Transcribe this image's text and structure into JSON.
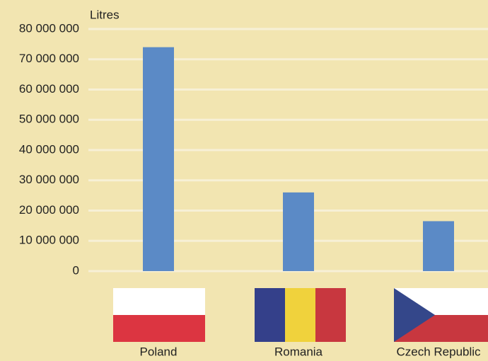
{
  "chart_data": {
    "type": "bar",
    "y_label": "Litres",
    "categories": [
      "Poland",
      "Romania",
      "Czech Republic"
    ],
    "values": [
      74000000,
      26000000,
      16500000
    ],
    "color": "#5b8ac6",
    "ylim": [
      0,
      80000000
    ],
    "yticks": [
      0,
      {
        "value": 10000000,
        "label": "10 000 000"
      },
      {
        "value": 20000000,
        "label": "20 000 000"
      },
      {
        "value": 30000000,
        "label": "30 000 000"
      },
      {
        "value": 40000000,
        "label": "40 000 000"
      },
      {
        "value": 50000000,
        "label": "50 000 000"
      },
      {
        "value": 60000000,
        "label": "60 000 000"
      },
      {
        "value": 70000000,
        "label": "70 000 000"
      },
      {
        "value": 80000000,
        "label": "80 000 000"
      }
    ],
    "grid": true
  }
}
